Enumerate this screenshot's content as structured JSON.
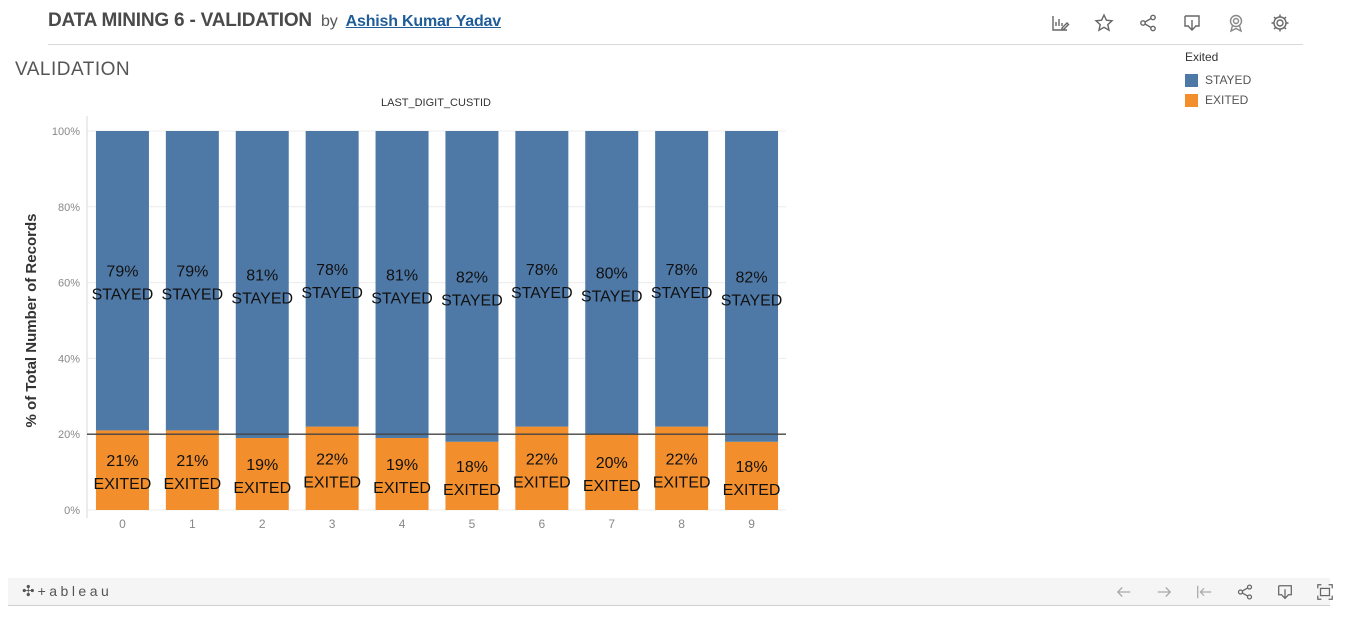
{
  "header": {
    "title": "DATA MINING 6 - VALIDATION",
    "by": "by",
    "author": "Ashish Kumar Yadav",
    "toolbar_icons": [
      "edit-sheet-icon",
      "favorite-star-icon",
      "share-icon",
      "download-icon",
      "badge-icon",
      "settings-gear-icon"
    ]
  },
  "sheet": {
    "title": "VALIDATION"
  },
  "legend": {
    "title": "Exited",
    "items": [
      {
        "label": "STAYED",
        "color": "#4e79a7"
      },
      {
        "label": "EXITED",
        "color": "#f28e2b"
      }
    ]
  },
  "chart_data": {
    "type": "bar",
    "stacked": true,
    "title": "LAST_DIGIT_CUSTID",
    "xlabel": "",
    "ylabel": "% of Total Number of Records",
    "ylim": [
      0,
      100
    ],
    "yticks": [
      "0%",
      "20%",
      "40%",
      "60%",
      "80%",
      "100%"
    ],
    "categories": [
      "0",
      "1",
      "2",
      "3",
      "4",
      "5",
      "6",
      "7",
      "8",
      "9"
    ],
    "series": [
      {
        "name": "EXITED",
        "color": "#f28e2b",
        "values": [
          21,
          21,
          19,
          22,
          19,
          18,
          22,
          20,
          22,
          18
        ],
        "labels": [
          "21%",
          "21%",
          "19%",
          "22%",
          "19%",
          "18%",
          "22%",
          "20%",
          "22%",
          "18%"
        ],
        "label_suffix": "EXITED"
      },
      {
        "name": "STAYED",
        "color": "#4e79a7",
        "values": [
          79,
          79,
          81,
          78,
          81,
          82,
          78,
          80,
          78,
          82
        ],
        "labels": [
          "79%",
          "79%",
          "81%",
          "78%",
          "81%",
          "82%",
          "78%",
          "80%",
          "78%",
          "82%"
        ],
        "label_suffix": "STAYED"
      }
    ],
    "reference_line": 20,
    "grid": true,
    "legend_position": "top-right"
  },
  "footer": {
    "brand": "+ableau",
    "nav_icons": [
      "undo-arrow-icon",
      "redo-arrow-icon",
      "revert-icon",
      "share-icon",
      "download-icon",
      "fullscreen-icon"
    ]
  }
}
